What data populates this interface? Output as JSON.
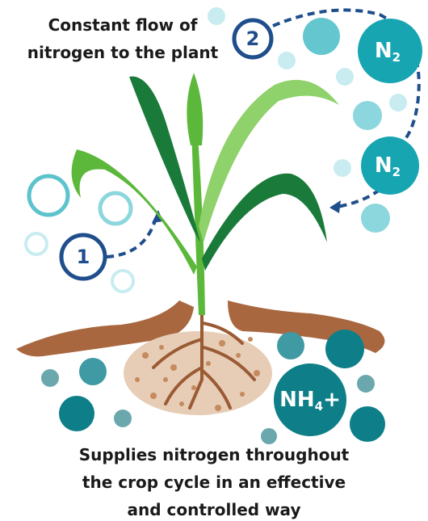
{
  "top_caption": [
    "Constant flow of",
    "nitrogen to the plant"
  ],
  "steps": [
    "1",
    "2"
  ],
  "molecules": [
    {
      "symbol": "N",
      "subscript": "2"
    },
    {
      "symbol": "N",
      "subscript": "2"
    }
  ],
  "soil_ion": {
    "symbol": "NH",
    "subscript": "4",
    "charge": "+"
  },
  "bottom_caption": [
    "Supplies nitrogen throughout",
    "the crop cycle in an effective",
    "and controlled way"
  ]
}
